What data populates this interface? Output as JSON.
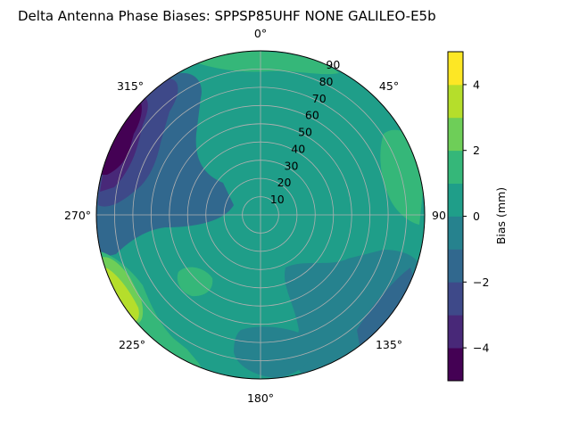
{
  "chart_data": {
    "type": "polar-contour",
    "title": "Delta Antenna Phase Biases: SPPSP85UHF      NONE GALILEO-E5b",
    "angle_tick_labels": [
      "0°",
      "45°",
      "90",
      "135°",
      "180°",
      "225°",
      "270°",
      "315°"
    ],
    "radial_tick_labels": [
      "10",
      "20",
      "30",
      "40",
      "50",
      "60",
      "70",
      "80",
      "90"
    ],
    "colorbar": {
      "label": "Bias (mm)",
      "tick_labels": [
        "4",
        "2",
        "0",
        "−2",
        "−4"
      ],
      "tick_values": [
        4,
        2,
        0,
        -2,
        -4
      ],
      "range": [
        -5,
        5
      ],
      "levels": [
        -5,
        -4,
        -3,
        -2,
        -1,
        0,
        1,
        2,
        3,
        4,
        5
      ],
      "colors": [
        "#440154",
        "#482878",
        "#3e4989",
        "#31688e",
        "#26828e",
        "#1f9e89",
        "#35b779",
        "#6ece58",
        "#b5de2b",
        "#fde725"
      ]
    },
    "regions": [
      {
        "name": "background",
        "level": 0,
        "color": "#1f9e89"
      },
      {
        "name": "west-low",
        "level": -2,
        "color": "#31688e"
      },
      {
        "name": "northwest-lower",
        "level": -3,
        "color": "#3e4989"
      },
      {
        "name": "northwest-minimum",
        "level": -4,
        "color": "#482878"
      },
      {
        "name": "northwest-deep",
        "level": -5,
        "color": "#440154"
      },
      {
        "name": "southeast-low",
        "level": -1,
        "color": "#26828e"
      },
      {
        "name": "southeast-lower",
        "level": -2,
        "color": "#31688e"
      },
      {
        "name": "east-high",
        "level": 1,
        "color": "#35b779"
      },
      {
        "name": "north-rim-high",
        "level": 1,
        "color": "#35b779"
      },
      {
        "name": "southwest-high",
        "level": 1,
        "color": "#35b779"
      },
      {
        "name": "southwest-higher",
        "level": 2,
        "color": "#6ece58"
      },
      {
        "name": "southwest-max",
        "level": 3,
        "color": "#b5de2b"
      },
      {
        "name": "inner-sw-high",
        "level": 1,
        "color": "#35b779"
      },
      {
        "name": "south-low",
        "level": -1,
        "color": "#26828e"
      }
    ]
  }
}
